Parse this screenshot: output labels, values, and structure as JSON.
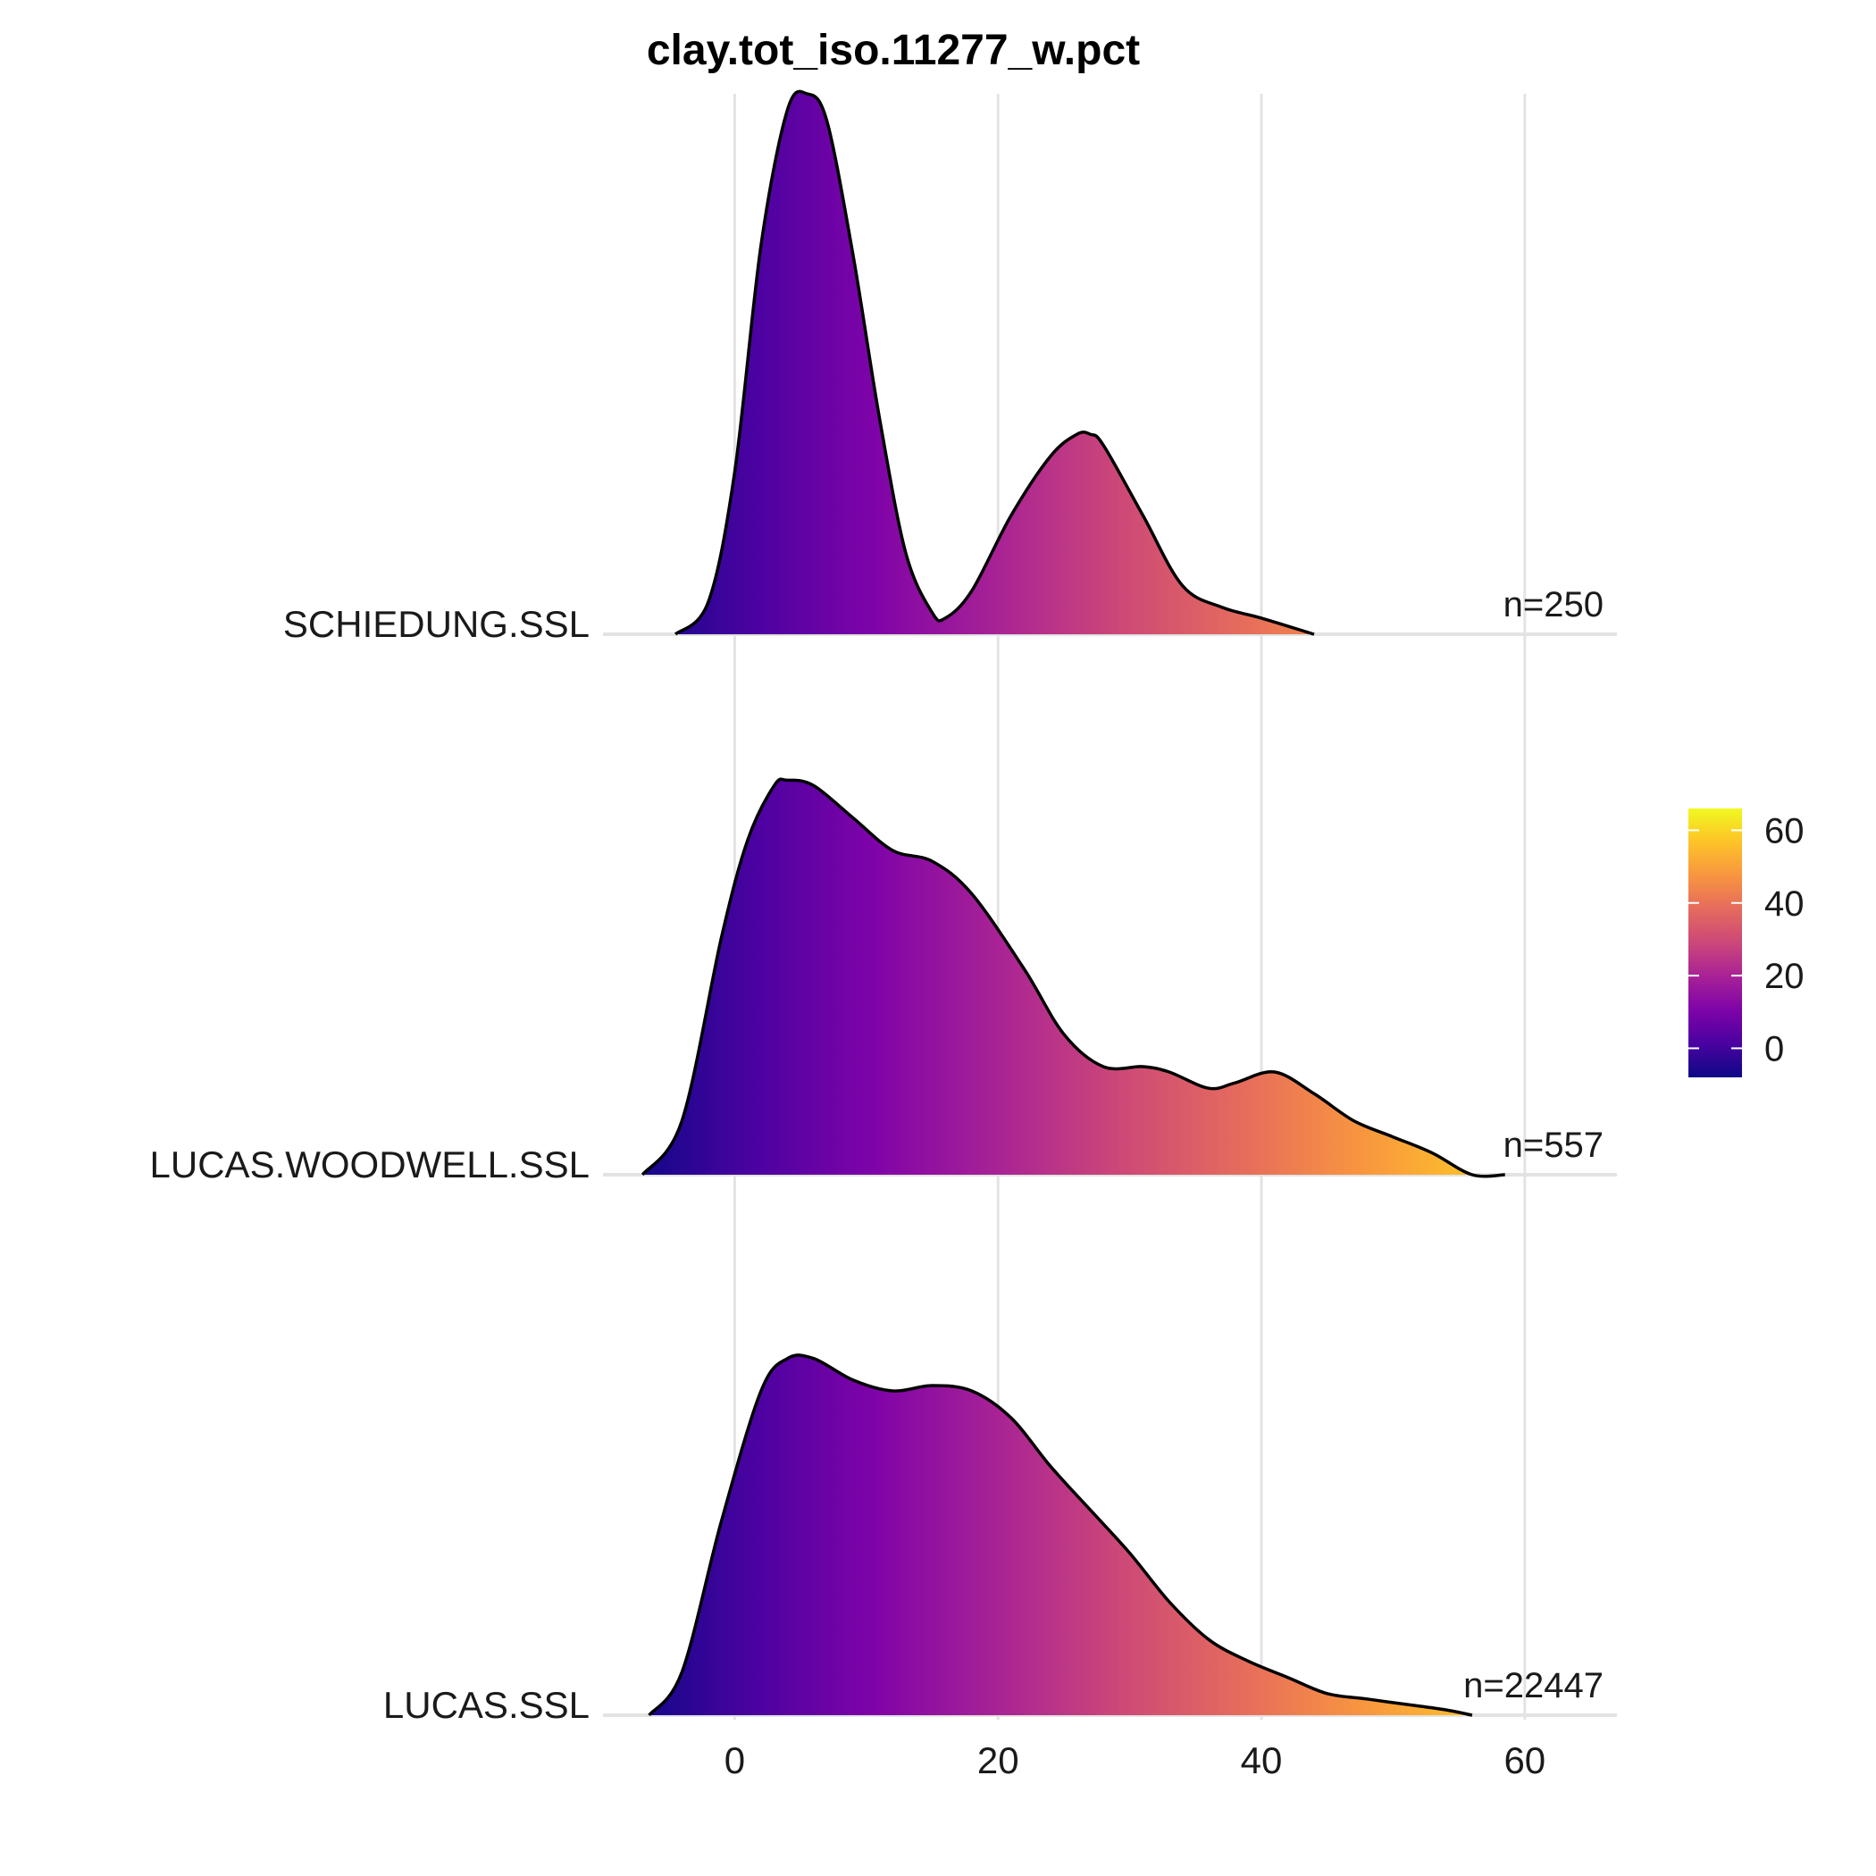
{
  "chart_data": {
    "type": "ridgeline-density",
    "title": "clay.tot_iso.11277_w.pct",
    "xlabel": "",
    "ylabel": "",
    "xlim": [
      -10,
      67
    ],
    "xticks": [
      0,
      20,
      40,
      60
    ],
    "xtick_labels": [
      "0",
      "20",
      "40",
      "60"
    ],
    "grid": true,
    "fill_colormap": "plasma",
    "colorbar": {
      "range": [
        -8,
        66
      ],
      "ticks": [
        0,
        20,
        40,
        60
      ],
      "tick_labels": [
        "0",
        "20",
        "40",
        "60"
      ],
      "placement": "right"
    },
    "series": [
      {
        "name": "SCHIEDUNG.SSL",
        "n_label": "n=250",
        "x": [
          -4.5,
          -2,
          0,
          2,
          4,
          5.5,
          7,
          9,
          11,
          13,
          15,
          16,
          18,
          21,
          24,
          26,
          27,
          28,
          31,
          34,
          37,
          40,
          44
        ],
        "density": [
          0.0,
          0.06,
          0.3,
          0.72,
          0.97,
          1.0,
          0.95,
          0.7,
          0.4,
          0.15,
          0.04,
          0.03,
          0.08,
          0.22,
          0.33,
          0.37,
          0.37,
          0.35,
          0.22,
          0.09,
          0.05,
          0.03,
          0.0
        ]
      },
      {
        "name": "LUCAS.WOODWELL.SSL",
        "n_label": "n=557",
        "x": [
          -7,
          -4,
          -1,
          1,
          3,
          4,
          6,
          9,
          12,
          15,
          18,
          22,
          25,
          28,
          31,
          33,
          36,
          38,
          41,
          44,
          47,
          50,
          53,
          56,
          58.5
        ],
        "density": [
          0.0,
          0.1,
          0.44,
          0.62,
          0.72,
          0.73,
          0.72,
          0.66,
          0.6,
          0.58,
          0.52,
          0.38,
          0.26,
          0.2,
          0.2,
          0.19,
          0.16,
          0.17,
          0.19,
          0.15,
          0.1,
          0.07,
          0.04,
          0.0,
          0.0
        ]
      },
      {
        "name": "LUCAS.SSL",
        "n_label": "n=22447",
        "x": [
          -6.5,
          -4,
          -1,
          2,
          4,
          6,
          9,
          12,
          15,
          18,
          21,
          24,
          27,
          30,
          33,
          36,
          39,
          42,
          45,
          48,
          51,
          54,
          56
        ],
        "density": [
          0.0,
          0.08,
          0.36,
          0.6,
          0.66,
          0.66,
          0.62,
          0.6,
          0.61,
          0.6,
          0.55,
          0.46,
          0.38,
          0.3,
          0.21,
          0.14,
          0.1,
          0.07,
          0.04,
          0.03,
          0.02,
          0.01,
          0.0
        ]
      }
    ]
  }
}
